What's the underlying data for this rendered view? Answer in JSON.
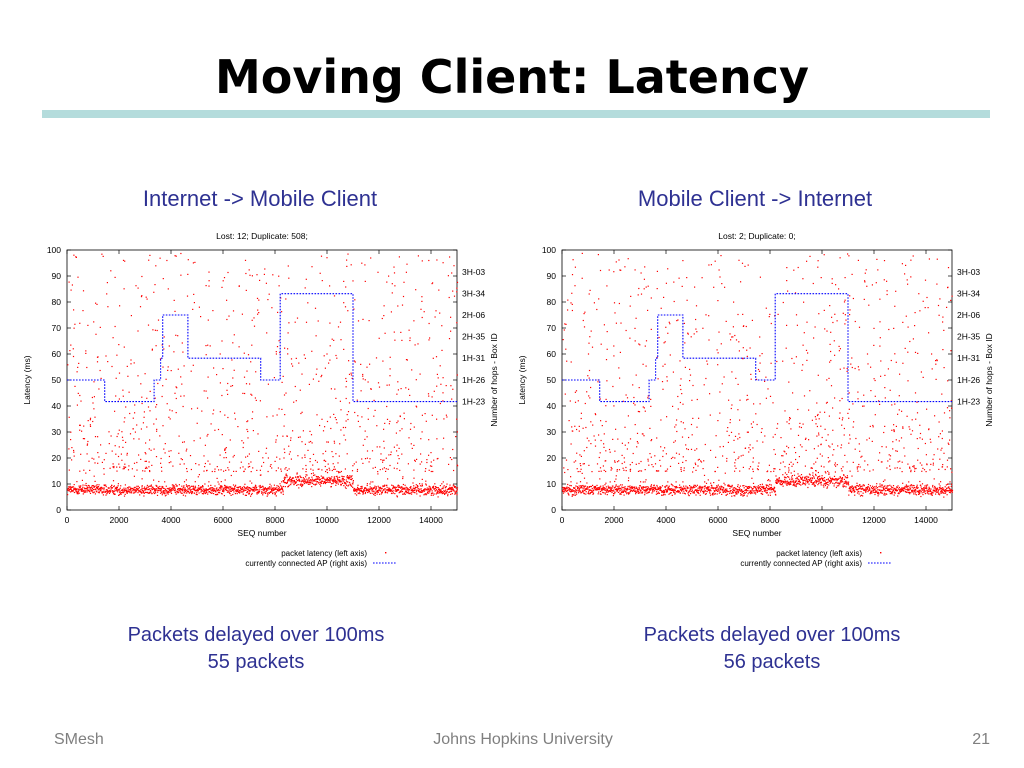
{
  "slide": {
    "title": "Moving Client: Latency",
    "left_subtitle": "Internet -> Mobile Client",
    "right_subtitle": "Mobile Client -> Internet",
    "left_note": [
      "Packets delayed over 100ms",
      "55 packets"
    ],
    "right_note": [
      "Packets delayed over 100ms",
      "56 packets"
    ],
    "footer": {
      "left": "SMesh",
      "center": "Johns Hopkins University",
      "right": "21"
    }
  },
  "colors": {
    "title_rule": "#b4dcdc",
    "subtitle_text": "#2e3192",
    "points": "#ff0000",
    "ap_line": "#0000ff",
    "footer_text": "#7f7f7f"
  },
  "chart_data": [
    {
      "type": "scatter",
      "title": "Lost: 12; Duplicate: 508;",
      "xlabel": "SEQ number",
      "ylabel": "Latency (ms)",
      "y2label": "Number of hops - Box ID",
      "xlim": [
        0,
        15000
      ],
      "ylim": [
        0,
        100
      ],
      "xticks": [
        0,
        2000,
        4000,
        6000,
        8000,
        10000,
        12000,
        14000
      ],
      "yticks": [
        0,
        10,
        20,
        30,
        40,
        50,
        60,
        70,
        80,
        90,
        100
      ],
      "y2ticks": [
        {
          "label": "3H-03",
          "y": 91.5
        },
        {
          "label": "3H-34",
          "y": 83.2
        },
        {
          "label": "2H-06",
          "y": 75
        },
        {
          "label": "2H-35",
          "y": 66.7
        },
        {
          "label": "1H-31",
          "y": 58.4
        },
        {
          "label": "1H-26",
          "y": 50
        },
        {
          "label": "1H-23",
          "y": 41.7
        }
      ],
      "legend": [
        "packet latency (left axis)",
        "currently connected AP (right axis)"
      ],
      "legend_position": "below",
      "series": [
        {
          "name": "packet latency (left axis)",
          "kind": "points",
          "segments": [
            {
              "x": [
                0,
                3500
              ],
              "base": 8,
              "spread": 3,
              "hot": 1.0
            },
            {
              "x": [
                3500,
                8300
              ],
              "base": 8,
              "spread": 3,
              "hot": 0.7
            },
            {
              "x": [
                8300,
                11000
              ],
              "base": 11.5,
              "spread": 3.5,
              "hot": 1.0
            },
            {
              "x": [
                11000,
                15000
              ],
              "base": 8,
              "spread": 3,
              "hot": 0.7
            }
          ],
          "outlier_count": 900
        },
        {
          "name": "currently connected AP (right axis)",
          "kind": "step",
          "points": [
            [
              0,
              50
            ],
            [
              1450,
              50
            ],
            [
              1450,
              41.7
            ],
            [
              3350,
              41.7
            ],
            [
              3350,
              50
            ],
            [
              3600,
              50
            ],
            [
              3600,
              58.4
            ],
            [
              3680,
              58.4
            ],
            [
              3680,
              75
            ],
            [
              4650,
              75
            ],
            [
              4650,
              58.4
            ],
            [
              7450,
              58.4
            ],
            [
              7450,
              50
            ],
            [
              8200,
              50
            ],
            [
              8200,
              83.2
            ],
            [
              11000,
              83.2
            ],
            [
              11000,
              41.7
            ],
            [
              15000,
              41.7
            ]
          ]
        }
      ]
    },
    {
      "type": "scatter",
      "title": "Lost: 2; Duplicate: 0;",
      "xlabel": "SEQ number",
      "ylabel": "Latency (ms)",
      "y2label": "Number of hops - Box ID",
      "xlim": [
        0,
        15000
      ],
      "ylim": [
        0,
        100
      ],
      "xticks": [
        0,
        2000,
        4000,
        6000,
        8000,
        10000,
        12000,
        14000
      ],
      "yticks": [
        0,
        10,
        20,
        30,
        40,
        50,
        60,
        70,
        80,
        90,
        100
      ],
      "y2ticks": [
        {
          "label": "3H-03",
          "y": 91.5
        },
        {
          "label": "3H-34",
          "y": 83.2
        },
        {
          "label": "2H-06",
          "y": 75
        },
        {
          "label": "2H-35",
          "y": 66.7
        },
        {
          "label": "1H-31",
          "y": 58.4
        },
        {
          "label": "1H-26",
          "y": 50
        },
        {
          "label": "1H-23",
          "y": 41.7
        }
      ],
      "legend": [
        "packet latency (left axis)",
        "currently connected AP (right axis)"
      ],
      "legend_position": "below",
      "series": [
        {
          "name": "packet latency (left axis)",
          "kind": "points",
          "segments": [
            {
              "x": [
                0,
                3500
              ],
              "base": 8,
              "spread": 3,
              "hot": 1.0
            },
            {
              "x": [
                3500,
                8200
              ],
              "base": 8,
              "spread": 3,
              "hot": 0.7
            },
            {
              "x": [
                8200,
                11000
              ],
              "base": 11.5,
              "spread": 3.5,
              "hot": 1.0
            },
            {
              "x": [
                11000,
                15000
              ],
              "base": 8,
              "spread": 3,
              "hot": 0.7
            }
          ],
          "outlier_count": 950
        },
        {
          "name": "currently connected AP (right axis)",
          "kind": "step",
          "points": [
            [
              0,
              50
            ],
            [
              1450,
              50
            ],
            [
              1450,
              41.7
            ],
            [
              3350,
              41.7
            ],
            [
              3350,
              50
            ],
            [
              3600,
              50
            ],
            [
              3600,
              58.4
            ],
            [
              3680,
              58.4
            ],
            [
              3680,
              75
            ],
            [
              4650,
              75
            ],
            [
              4650,
              58.4
            ],
            [
              7450,
              58.4
            ],
            [
              7450,
              50
            ],
            [
              8200,
              50
            ],
            [
              8200,
              83.2
            ],
            [
              11000,
              83.2
            ],
            [
              11000,
              41.7
            ],
            [
              15000,
              41.7
            ]
          ]
        }
      ]
    }
  ]
}
